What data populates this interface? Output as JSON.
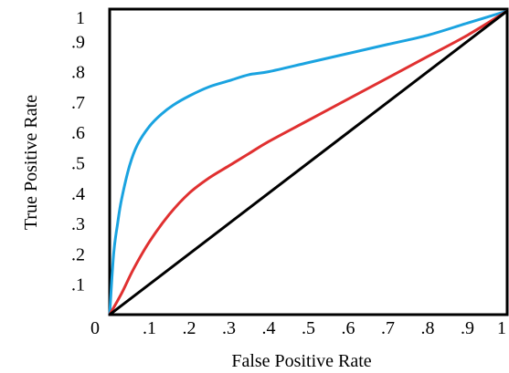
{
  "chart_data": {
    "type": "line",
    "title": "",
    "xlabel": "False Positive Rate",
    "ylabel": "True Positive Rate",
    "xlim": [
      0,
      1
    ],
    "ylim": [
      0,
      1
    ],
    "grid": false,
    "legend": "none",
    "x_ticks": [
      "0",
      ".1",
      ".2",
      ".3",
      ".4",
      ".5",
      ".6",
      ".7",
      ".8",
      ".9",
      "1"
    ],
    "y_ticks": [
      ".1",
      ".2",
      ".3",
      ".4",
      ".5",
      ".6",
      ".7",
      ".8",
      ".9",
      "1"
    ],
    "x_tick_values": [
      0,
      0.1,
      0.2,
      0.3,
      0.4,
      0.5,
      0.6,
      0.7,
      0.8,
      0.9,
      1.0
    ],
    "y_tick_values": [
      0.1,
      0.2,
      0.3,
      0.4,
      0.5,
      0.6,
      0.7,
      0.8,
      0.9,
      1.0
    ],
    "series": [
      {
        "color": "#1aa3e0",
        "x": [
          0,
          0.01,
          0.02,
          0.03,
          0.05,
          0.07,
          0.1,
          0.13,
          0.16,
          0.2,
          0.25,
          0.3,
          0.35,
          0.4,
          0.5,
          0.6,
          0.7,
          0.8,
          0.9,
          1.0
        ],
        "y": [
          0,
          0.2,
          0.3,
          0.38,
          0.49,
          0.56,
          0.62,
          0.66,
          0.69,
          0.72,
          0.75,
          0.77,
          0.79,
          0.8,
          0.83,
          0.86,
          0.89,
          0.92,
          0.96,
          1.0
        ]
      },
      {
        "color": "#e03030",
        "x": [
          0,
          0.03,
          0.06,
          0.1,
          0.15,
          0.2,
          0.25,
          0.3,
          0.35,
          0.4,
          0.5,
          0.6,
          0.7,
          0.8,
          0.9,
          1.0
        ],
        "y": [
          0,
          0.07,
          0.15,
          0.24,
          0.33,
          0.4,
          0.45,
          0.49,
          0.53,
          0.57,
          0.64,
          0.71,
          0.78,
          0.85,
          0.92,
          1.0
        ]
      },
      {
        "color": "#000000",
        "x": [
          0,
          1
        ],
        "y": [
          0,
          1
        ]
      }
    ]
  }
}
